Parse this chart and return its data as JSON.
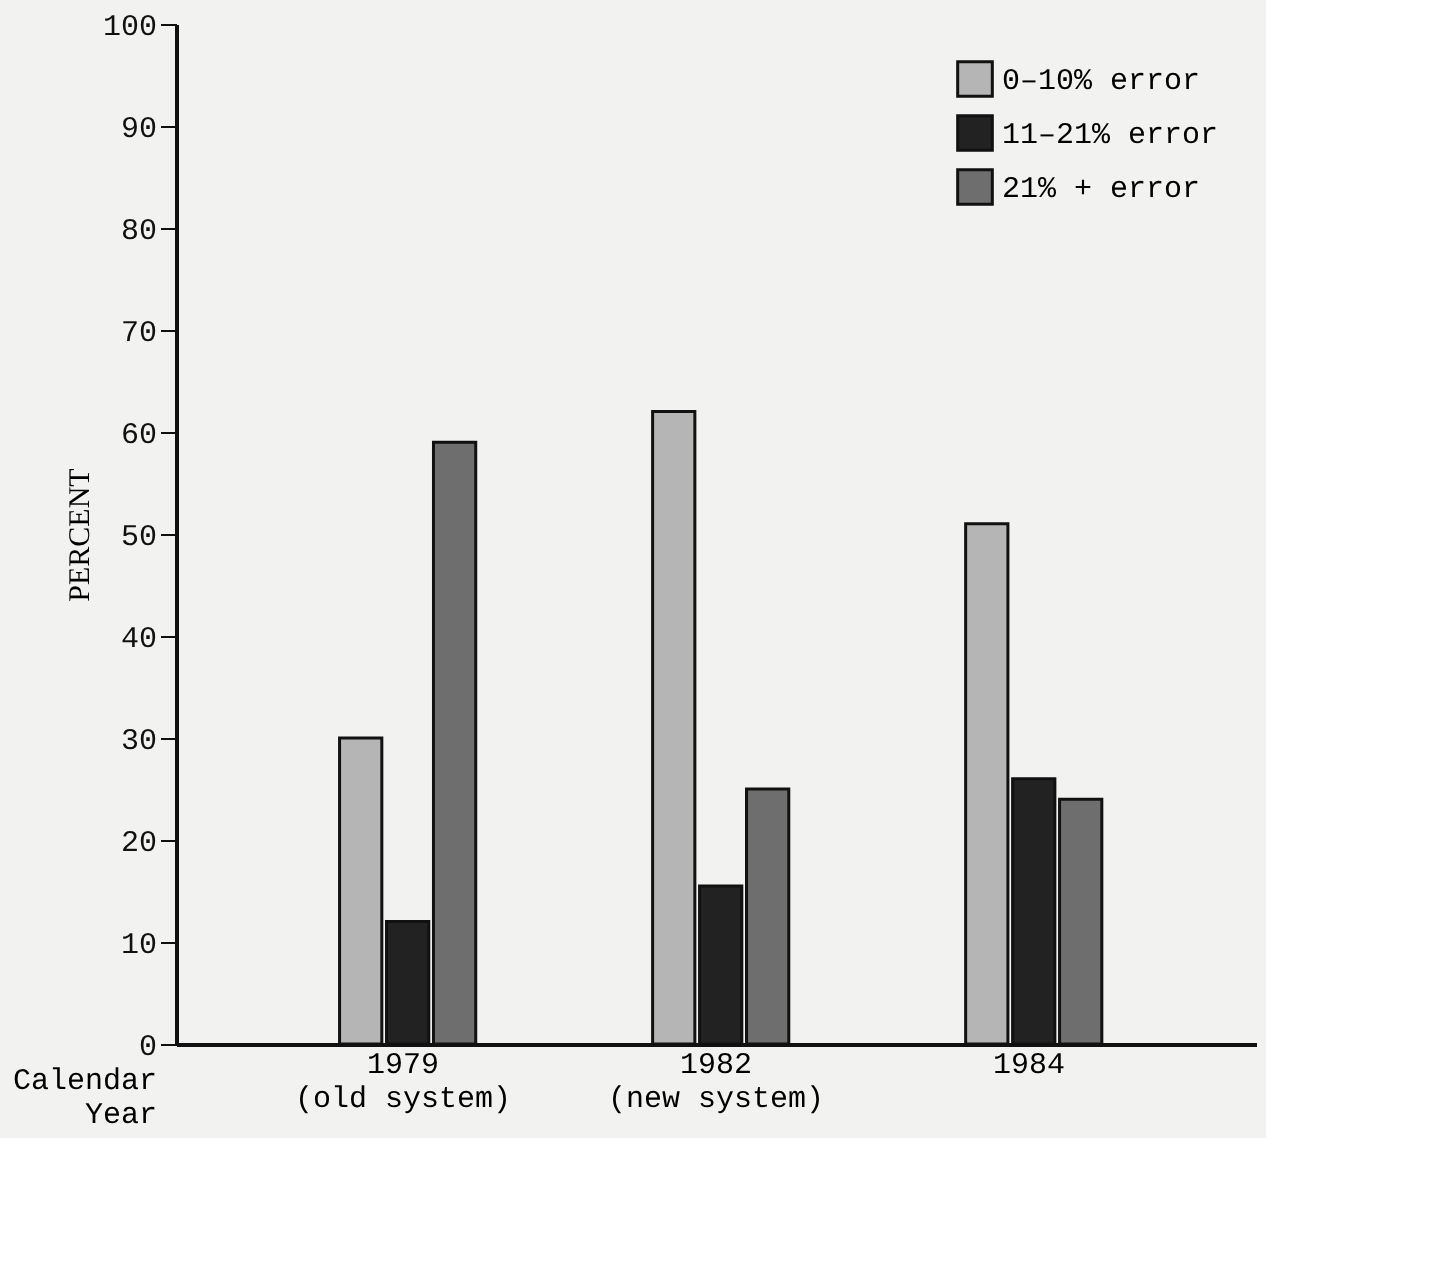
{
  "chart_data": {
    "type": "bar",
    "categories": [
      "1979\n(old system)",
      "1982\n(new system)",
      "1984"
    ],
    "xlabel": "Calendar\nYear",
    "ylabel": "PERCENT",
    "series": [
      {
        "name": "0–10% error",
        "color": "#b5b5b5",
        "values": [
          30,
          62,
          51
        ]
      },
      {
        "name": "11–21% error",
        "color": "#222222",
        "values": [
          12,
          15.5,
          26
        ]
      },
      {
        "name": "21% + error",
        "color": "#6e6e6e",
        "values": [
          59,
          25,
          24
        ]
      }
    ],
    "ylim": [
      0,
      100
    ],
    "yticks": [
      0,
      10,
      20,
      30,
      40,
      50,
      60,
      70,
      80,
      90,
      100
    ],
    "grid": false,
    "legend": "top right"
  }
}
